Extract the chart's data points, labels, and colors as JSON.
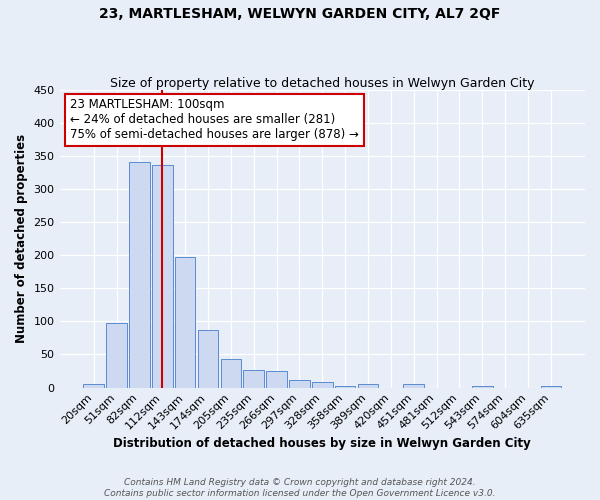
{
  "title": "23, MARTLESHAM, WELWYN GARDEN CITY, AL7 2QF",
  "subtitle": "Size of property relative to detached houses in Welwyn Garden City",
  "xlabel": "Distribution of detached houses by size in Welwyn Garden City",
  "ylabel": "Number of detached properties",
  "footer_line1": "Contains HM Land Registry data © Crown copyright and database right 2024.",
  "footer_line2": "Contains public sector information licensed under the Open Government Licence v3.0.",
  "bar_labels": [
    "20sqm",
    "51sqm",
    "82sqm",
    "112sqm",
    "143sqm",
    "174sqm",
    "205sqm",
    "235sqm",
    "266sqm",
    "297sqm",
    "328sqm",
    "358sqm",
    "389sqm",
    "420sqm",
    "451sqm",
    "481sqm",
    "512sqm",
    "543sqm",
    "574sqm",
    "604sqm",
    "635sqm"
  ],
  "bar_values": [
    5,
    97,
    341,
    336,
    197,
    87,
    43,
    26,
    25,
    11,
    8,
    3,
    6,
    0,
    5,
    0,
    0,
    2,
    0,
    0,
    2
  ],
  "bar_color": "#ccd9f0",
  "bar_edge_color": "#5b8bd0",
  "ylim": [
    0,
    450
  ],
  "yticks": [
    0,
    50,
    100,
    150,
    200,
    250,
    300,
    350,
    400,
    450
  ],
  "vline_x_index": 3,
  "vline_color": "#cc0000",
  "annotation_line1": "23 MARTLESHAM: 100sqm",
  "annotation_line2": "← 24% of detached houses are smaller (281)",
  "annotation_line3": "75% of semi-detached houses are larger (878) →",
  "annotation_box_color": "#ffffff",
  "annotation_box_edge": "#cc0000",
  "bg_color": "#e8eef8",
  "grid_color": "#ffffff",
  "title_fontsize": 10,
  "subtitle_fontsize": 9,
  "axis_label_fontsize": 8.5,
  "tick_fontsize": 8,
  "annotation_fontsize": 8.5,
  "footer_fontsize": 6.5,
  "bar_width": 0.9
}
